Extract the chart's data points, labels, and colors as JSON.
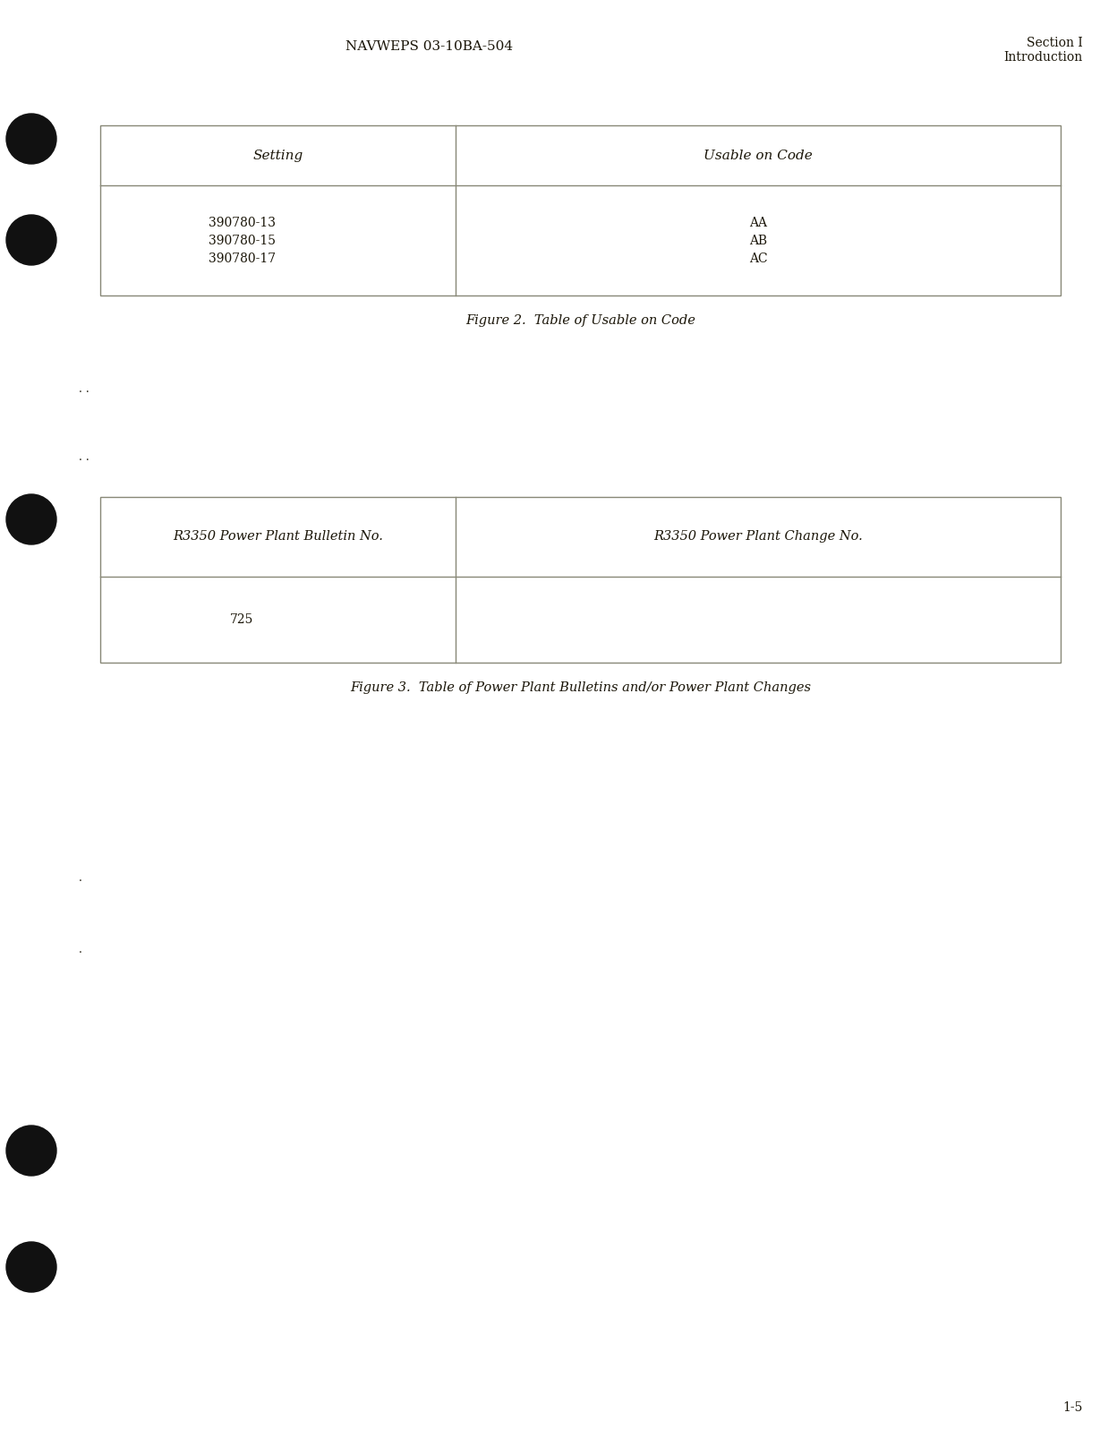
{
  "page_bg": "#ffffff",
  "header_center": "NAVWEPS 03-10BA-504",
  "header_right_line1": "Section I",
  "header_right_line2": "Introduction",
  "page_number": "1-5",
  "table1_caption": "Figure 2.  Table of Usable on Code",
  "table1_col1_header": "Setting",
  "table1_col2_header": "Usable on Code",
  "table1_rows": [
    [
      "390780-13",
      "AA"
    ],
    [
      "390780-15",
      "AB"
    ],
    [
      "390780-17",
      "AC"
    ]
  ],
  "table2_caption": "Figure 3.  Table of Power Plant Bulletins and/or Power Plant Changes",
  "table2_col1_header": "R3350 Power Plant Bulletin No.",
  "table2_col2_header": "R3350 Power Plant Change No.",
  "table2_rows": [
    [
      "725",
      ""
    ]
  ],
  "border_color": "#888877",
  "text_color": "#1a1508",
  "dot_color": "#111111"
}
